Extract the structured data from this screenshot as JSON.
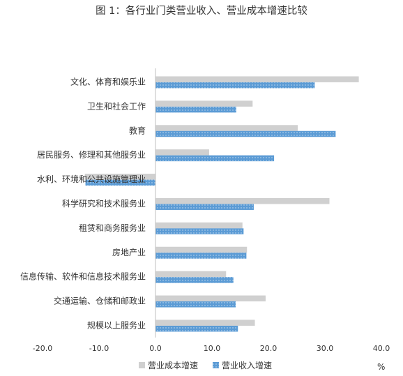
{
  "title": "图 1：各行业门类营业收入、营业成本增速比较",
  "unit_label": "%",
  "chart_data": {
    "type": "bar",
    "orientation": "horizontal",
    "title": "图 1：各行业门类营业收入、营业成本增速比较",
    "xlabel": "",
    "ylabel": "",
    "unit": "%",
    "xlim": [
      -20.0,
      40.0
    ],
    "ticks": [
      "-20.0",
      "-10.0",
      "0.0",
      "10.0",
      "20.0",
      "30.0",
      "40.0"
    ],
    "grid": false,
    "legend_position": "bottom",
    "categories": [
      "文化、体育和娱乐业",
      "卫生和社会工作",
      "教育",
      "居民服务、修理和其他服务业",
      "水利、环境和公共设施管理业",
      "科学研究和技术服务业",
      "租赁和商务服务业",
      "房地产业",
      "信息传输、软件和信息技术服务业",
      "交通运输、仓储和邮政业",
      "规模以上服务业"
    ],
    "series": [
      {
        "name": "营业成本增速",
        "color": "#d0d0d0",
        "values": [
          36.0,
          17.2,
          25.2,
          9.5,
          -12.5,
          30.8,
          15.4,
          16.2,
          12.5,
          19.5,
          17.6
        ]
      },
      {
        "name": "营业收入增速",
        "color": "#5b9bd5",
        "values": [
          28.2,
          14.3,
          31.9,
          21.0,
          -12.4,
          17.4,
          15.6,
          16.1,
          13.8,
          14.2,
          14.6
        ]
      }
    ]
  }
}
